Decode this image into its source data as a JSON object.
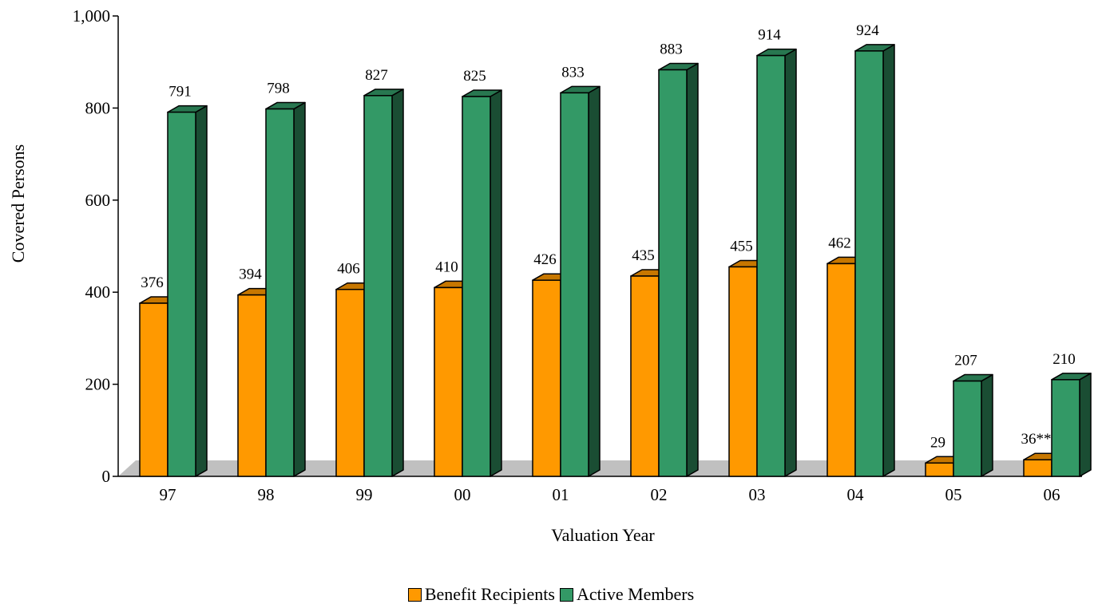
{
  "chart_data": {
    "type": "bar",
    "categories": [
      "97",
      "98",
      "99",
      "00",
      "01",
      "02",
      "03",
      "04",
      "05",
      "06"
    ],
    "series": [
      {
        "name": "Benefit Recipients",
        "values": [
          376,
          394,
          406,
          410,
          426,
          435,
          455,
          462,
          29,
          36
        ],
        "labels": [
          "376",
          "394",
          "406",
          "410",
          "426",
          "435",
          "455",
          "462",
          "29",
          "36**"
        ],
        "color": "#FF9900"
      },
      {
        "name": "Active Members",
        "values": [
          791,
          798,
          827,
          825,
          833,
          883,
          914,
          924,
          207,
          210
        ],
        "labels": [
          "791",
          "798",
          "827",
          "825",
          "833",
          "883",
          "914",
          "924",
          "207",
          "210"
        ],
        "color": "#339966"
      }
    ],
    "xlabel": "Valuation Year",
    "ylabel": "Covered Persons",
    "ylim": [
      0,
      1000
    ],
    "yticks": [
      {
        "value": 0,
        "label": "0"
      },
      {
        "value": 200,
        "label": "200"
      },
      {
        "value": 400,
        "label": "400"
      },
      {
        "value": 600,
        "label": "600"
      },
      {
        "value": 800,
        "label": "800"
      },
      {
        "value": 1000,
        "label": "1,000"
      }
    ],
    "grid": false,
    "legend_position": "bottom",
    "floor_color": "#C0C0C0"
  }
}
